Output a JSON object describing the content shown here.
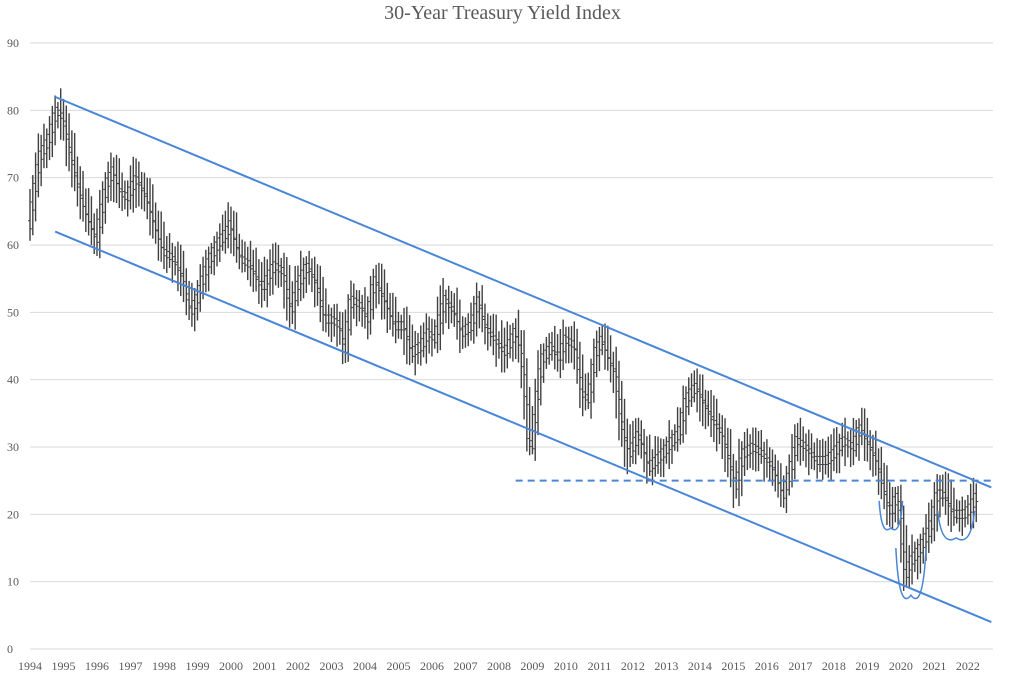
{
  "chart_data": {
    "type": "bar",
    "subtype": "ohlc-range",
    "title": "30-Year Treasury Yield Index",
    "xlabel": "",
    "ylabel": "",
    "ylim": [
      0,
      90
    ],
    "yticks": [
      "0",
      "10",
      "20",
      "30",
      "40",
      "50",
      "60",
      "70",
      "80",
      "90"
    ],
    "xticks": [
      "1994",
      "1995",
      "1996",
      "1997",
      "1998",
      "1999",
      "2000",
      "2001",
      "2002",
      "2003",
      "2004",
      "2005",
      "2006",
      "2007",
      "2008",
      "2009",
      "2010",
      "2011",
      "2012",
      "2013",
      "2014",
      "2015",
      "2016",
      "2017",
      "2018",
      "2019",
      "2020",
      "2021",
      "2022"
    ],
    "grid": true,
    "legend": "none",
    "colors": {
      "bars": "#404040",
      "trendline": "#4a86d8",
      "grid": "#d9d9d9",
      "text": "#595959"
    },
    "anchors": [
      [
        1994.0,
        63
      ],
      [
        1994.3,
        73
      ],
      [
        1994.6,
        76
      ],
      [
        1994.8,
        80
      ],
      [
        1995.0,
        79
      ],
      [
        1995.3,
        72
      ],
      [
        1995.6,
        66
      ],
      [
        1995.9,
        62
      ],
      [
        1996.0,
        61
      ],
      [
        1996.3,
        69
      ],
      [
        1996.5,
        71
      ],
      [
        1996.7,
        68
      ],
      [
        1996.9,
        67
      ],
      [
        1997.2,
        70
      ],
      [
        1997.5,
        67
      ],
      [
        1997.8,
        62
      ],
      [
        1998.0,
        59
      ],
      [
        1998.3,
        58
      ],
      [
        1998.6,
        55
      ],
      [
        1998.8,
        50
      ],
      [
        1999.0,
        52
      ],
      [
        1999.3,
        57
      ],
      [
        1999.6,
        60
      ],
      [
        1999.9,
        62
      ],
      [
        2000.0,
        63
      ],
      [
        2000.3,
        58
      ],
      [
        2000.6,
        57
      ],
      [
        2000.9,
        54
      ],
      [
        2001.0,
        54
      ],
      [
        2001.3,
        57
      ],
      [
        2001.6,
        56
      ],
      [
        2001.8,
        50
      ],
      [
        2002.0,
        54
      ],
      [
        2002.3,
        57
      ],
      [
        2002.6,
        54
      ],
      [
        2002.8,
        49
      ],
      [
        2003.0,
        49
      ],
      [
        2003.3,
        48
      ],
      [
        2003.4,
        44
      ],
      [
        2003.6,
        52
      ],
      [
        2003.9,
        51
      ],
      [
        2004.1,
        49
      ],
      [
        2004.3,
        55
      ],
      [
        2004.6,
        52
      ],
      [
        2004.9,
        48
      ],
      [
        2005.2,
        48
      ],
      [
        2005.4,
        44
      ],
      [
        2005.7,
        45
      ],
      [
        2005.9,
        47
      ],
      [
        2006.1,
        46
      ],
      [
        2006.4,
        52
      ],
      [
        2006.7,
        50
      ],
      [
        2006.9,
        47
      ],
      [
        2007.2,
        48
      ],
      [
        2007.4,
        52
      ],
      [
        2007.6,
        48
      ],
      [
        2007.9,
        46
      ],
      [
        2008.2,
        44
      ],
      [
        2008.5,
        47
      ],
      [
        2008.7,
        44
      ],
      [
        2008.85,
        36
      ],
      [
        2008.95,
        28
      ],
      [
        2009.1,
        35
      ],
      [
        2009.3,
        43
      ],
      [
        2009.6,
        45
      ],
      [
        2009.8,
        43
      ],
      [
        2010.0,
        46
      ],
      [
        2010.3,
        45
      ],
      [
        2010.5,
        38
      ],
      [
        2010.7,
        37
      ],
      [
        2010.9,
        44
      ],
      [
        2011.1,
        46
      ],
      [
        2011.3,
        43
      ],
      [
        2011.5,
        41
      ],
      [
        2011.7,
        33
      ],
      [
        2011.9,
        29
      ],
      [
        2012.2,
        32
      ],
      [
        2012.5,
        27
      ],
      [
        2012.7,
        28
      ],
      [
        2012.9,
        29
      ],
      [
        2013.2,
        31
      ],
      [
        2013.4,
        32
      ],
      [
        2013.6,
        37
      ],
      [
        2013.9,
        39
      ],
      [
        2014.1,
        37
      ],
      [
        2014.4,
        34
      ],
      [
        2014.7,
        32
      ],
      [
        2014.9,
        28
      ],
      [
        2015.1,
        24
      ],
      [
        2015.3,
        29
      ],
      [
        2015.6,
        30
      ],
      [
        2015.9,
        29
      ],
      [
        2016.2,
        27
      ],
      [
        2016.5,
        23
      ],
      [
        2016.7,
        26
      ],
      [
        2016.9,
        31
      ],
      [
        2017.2,
        30
      ],
      [
        2017.5,
        28
      ],
      [
        2017.8,
        28
      ],
      [
        2018.0,
        29
      ],
      [
        2018.3,
        31
      ],
      [
        2018.6,
        30
      ],
      [
        2018.8,
        33
      ],
      [
        2019.0,
        31
      ],
      [
        2019.3,
        28
      ],
      [
        2019.5,
        24
      ],
      [
        2019.7,
        20
      ],
      [
        2019.9,
        23
      ],
      [
        2020.0,
        20
      ],
      [
        2020.15,
        11
      ],
      [
        2020.3,
        13
      ],
      [
        2020.6,
        15
      ],
      [
        2020.9,
        18
      ],
      [
        2021.1,
        23
      ],
      [
        2021.3,
        23
      ],
      [
        2021.6,
        20
      ],
      [
        2021.9,
        20
      ],
      [
        2022.1,
        21
      ],
      [
        2022.3,
        23
      ]
    ],
    "trendlines": [
      {
        "name": "upper",
        "x": [
          1994.75,
          2022.7
        ],
        "y": [
          82,
          24
        ],
        "style": "solid"
      },
      {
        "name": "lower",
        "x": [
          1994.75,
          2022.7
        ],
        "y": [
          62,
          4
        ],
        "style": "solid"
      },
      {
        "name": "support",
        "x": [
          2008.5,
          2022.7
        ],
        "y": [
          25,
          25
        ],
        "style": "dashed"
      }
    ],
    "annotation_arcs": [
      {
        "x_center": 2019.7,
        "y_bottom": 18,
        "half_width": 0.35,
        "height": 4
      },
      {
        "x_center": 2020.3,
        "y_bottom": 8,
        "half_width": 0.45,
        "height": 7
      },
      {
        "x_center": 2021.65,
        "y_bottom": 16.5,
        "half_width": 0.55,
        "height": 4
      }
    ]
  }
}
